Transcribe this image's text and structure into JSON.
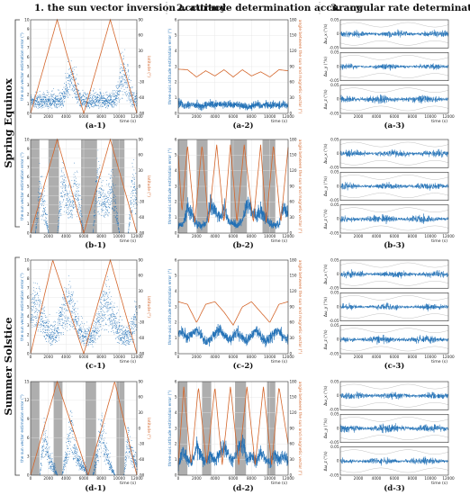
{
  "figure": {
    "column_titles": [
      "1. the sun vector inversion accuracy",
      "2. attitude determination accuracy",
      "3. angular rate determination accuracy"
    ],
    "seasons": [
      "Spring Equinox",
      "Summer Solstice"
    ],
    "row_labels": [
      [
        "(a-1)",
        "(a-2)",
        "(a-3)"
      ],
      [
        "(b-1)",
        "(b-2)",
        "(b-3)"
      ],
      [
        "(c-1)",
        "(c-2)",
        "(c-3)"
      ],
      [
        "(d-1)",
        "(d-2)",
        "(d-3)"
      ]
    ],
    "colors": {
      "blue": "#1f6fb6",
      "orange": "#d4662b",
      "shade": "#a0a0a0",
      "axis": "#333333"
    }
  },
  "chart_data": [
    {
      "id": "a-1",
      "type": "scatter",
      "xlabel": "time (s)",
      "ylabel": "the sun vector estimation error (°)",
      "y2label": "latitude (°)",
      "xticks": [
        "0",
        "2000",
        "4000",
        "6000",
        "8000",
        "10000",
        "12000"
      ],
      "yticks": [
        "0",
        "1",
        "2",
        "3",
        "4",
        "5",
        "6",
        "7",
        "8",
        "9",
        "10"
      ],
      "y2ticks": [
        "-90",
        "-60",
        "-30",
        "0",
        "30",
        "60",
        "90"
      ],
      "xlim": [
        0,
        12000
      ],
      "ylim": [
        0,
        10
      ],
      "y2lim": [
        -90,
        90
      ],
      "shaded": [],
      "error": {
        "base": [
          1.5,
          1.4,
          1.5,
          1.6,
          1.5,
          1.4,
          1.6,
          1.5,
          2.5,
          4.5,
          3.0,
          1.6,
          1.5,
          1.4,
          1.5,
          1.6,
          1.5,
          1.4,
          1.5,
          1.6,
          2.8,
          4.8,
          3.2,
          1.7,
          1.5
        ],
        "spread": [
          0.8,
          0.8,
          0.8,
          0.8,
          0.8,
          0.8,
          0.8,
          0.9,
          1.8,
          2.5,
          2.0,
          0.9,
          0.8,
          0.8,
          0.8,
          0.8,
          0.8,
          0.8,
          0.8,
          0.9,
          1.8,
          2.5,
          2.0,
          0.9,
          0.8
        ]
      },
      "reference": {
        "x": [
          0,
          3000,
          6000,
          9000,
          12000
        ],
        "y": [
          -90,
          90,
          -90,
          90,
          -90
        ]
      }
    },
    {
      "id": "a-2",
      "type": "line",
      "xlabel": "time (s)",
      "ylabel": "three-axis attitude estimation error (°)",
      "y2label": "angle between the sun and magnetic vector (°)",
      "xticks": [
        "0",
        "2000",
        "4000",
        "6000",
        "8000",
        "10000",
        "12000"
      ],
      "yticks": [
        "0",
        "1",
        "2",
        "3",
        "4",
        "5",
        "6"
      ],
      "y2ticks": [
        "0",
        "30",
        "60",
        "90",
        "120",
        "150",
        "180"
      ],
      "xlim": [
        0,
        12000
      ],
      "ylim": [
        0,
        6
      ],
      "y2lim": [
        0,
        180
      ],
      "shaded": [],
      "error": {
        "base": [
          0.9,
          0.5,
          0.6,
          0.5,
          0.6,
          0.4,
          0.5,
          0.6,
          0.5,
          0.6,
          0.5,
          0.6,
          0.5,
          0.6,
          0.5,
          0.4,
          0.5,
          0.6,
          0.5,
          0.6,
          0.5,
          0.6,
          0.5,
          0.6,
          0.5
        ],
        "spread": [
          0.5,
          0.3,
          0.3,
          0.3,
          0.3,
          0.3,
          0.3,
          0.3,
          0.3,
          0.3,
          0.3,
          0.3,
          0.3,
          0.3,
          0.3,
          0.3,
          0.3,
          0.3,
          0.3,
          0.3,
          0.3,
          0.3,
          0.3,
          0.3,
          0.3
        ]
      },
      "reference": {
        "x": [
          0,
          1000,
          2000,
          3000,
          4000,
          5000,
          6000,
          7000,
          8000,
          9000,
          10000,
          11000,
          12000
        ],
        "y": [
          85,
          84,
          70,
          82,
          72,
          84,
          70,
          84,
          72,
          80,
          70,
          84,
          82
        ]
      }
    },
    {
      "id": "b-1",
      "type": "scatter",
      "xlabel": "time (s)",
      "ylabel": "the sun vector estimation error (°)",
      "y2label": "latitude (°)",
      "xticks": [
        "0",
        "2000",
        "4000",
        "6000",
        "8000",
        "10000",
        "12000"
      ],
      "yticks": [
        "0",
        "1",
        "2",
        "3",
        "4",
        "5",
        "6",
        "7",
        "8",
        "9",
        "10"
      ],
      "y2ticks": [
        "-90",
        "-60",
        "-30",
        "0",
        "30",
        "60",
        "90"
      ],
      "xlim": [
        0,
        12000
      ],
      "ylim": [
        0,
        10
      ],
      "y2lim": [
        -90,
        90
      ],
      "shaded": [
        [
          0,
          1000
        ],
        [
          2000,
          3200
        ],
        [
          5700,
          7500
        ],
        [
          9200,
          10600
        ]
      ],
      "error": {
        "base": [
          0,
          0,
          5.0,
          3.0,
          0,
          0,
          0,
          6.0,
          4.0,
          3.5,
          5.5,
          3.0,
          0,
          0,
          0,
          6.5,
          4.0,
          3.0,
          5.0,
          3.5,
          0,
          0,
          0,
          6.0,
          4.0
        ],
        "spread": [
          0,
          0,
          2.5,
          2.0,
          0,
          0,
          0,
          2.5,
          2.0,
          2.0,
          2.5,
          2.0,
          0,
          0,
          0,
          2.5,
          2.0,
          2.0,
          2.5,
          2.0,
          0,
          0,
          0,
          2.5,
          2.0
        ]
      },
      "reference": {
        "x": [
          0,
          3000,
          6000,
          9000,
          12000
        ],
        "y": [
          -90,
          90,
          -90,
          90,
          -90
        ]
      }
    },
    {
      "id": "b-2",
      "type": "line",
      "xlabel": "time (s)",
      "ylabel": "three-axis attitude estimation error (°)",
      "y2label": "angle between the sun and magnetic vector (°)",
      "xticks": [
        "0",
        "2000",
        "4000",
        "6000",
        "8000",
        "10000",
        "12000"
      ],
      "yticks": [
        "0",
        "1",
        "2",
        "3",
        "4",
        "5",
        "6"
      ],
      "y2ticks": [
        "0",
        "30",
        "60",
        "90",
        "120",
        "150",
        "180"
      ],
      "xlim": [
        0,
        12000
      ],
      "ylim": [
        0,
        6
      ],
      "y2lim": [
        0,
        180
      ],
      "shaded": [
        [
          0,
          1000
        ],
        [
          2000,
          3200
        ],
        [
          5700,
          7500
        ],
        [
          9200,
          10600
        ]
      ],
      "error": {
        "base": [
          0.5,
          0.6,
          1.6,
          1.2,
          0.6,
          0.5,
          0.6,
          1.8,
          1.4,
          1.0,
          1.6,
          0.8,
          0.6,
          0.5,
          0.8,
          1.9,
          1.4,
          1.0,
          1.5,
          1.0,
          0.6,
          0.5,
          0.6,
          1.7,
          1.1
        ],
        "spread": [
          0.3,
          0.3,
          0.7,
          0.6,
          0.3,
          0.3,
          0.3,
          0.8,
          0.6,
          0.5,
          0.7,
          0.4,
          0.3,
          0.3,
          0.4,
          0.8,
          0.6,
          0.5,
          0.7,
          0.5,
          0.3,
          0.3,
          0.3,
          0.7,
          0.5
        ]
      },
      "reference": {
        "x": [
          0,
          400,
          1000,
          1800,
          2600,
          3300,
          4200,
          5000,
          5700,
          6400,
          7200,
          8200,
          9000,
          9600,
          10400,
          11200,
          12000
        ],
        "y": [
          150,
          40,
          170,
          20,
          170,
          20,
          170,
          20,
          170,
          20,
          170,
          20,
          170,
          20,
          170,
          20,
          165
        ]
      }
    },
    {
      "id": "c-1",
      "type": "scatter",
      "xlabel": "time (s)",
      "ylabel": "the sun vector estimation error (°)",
      "y2label": "latitude (°)",
      "xticks": [
        "0",
        "2000",
        "4000",
        "6000",
        "8000",
        "10000",
        "12000"
      ],
      "yticks": [
        "0",
        "1",
        "2",
        "3",
        "4",
        "5",
        "6",
        "7",
        "8",
        "9",
        "10"
      ],
      "y2ticks": [
        "-90",
        "-60",
        "-30",
        "0",
        "30",
        "60",
        "90"
      ],
      "xlim": [
        0,
        12000
      ],
      "ylim": [
        0,
        10
      ],
      "y2lim": [
        -90,
        90
      ],
      "shaded": [],
      "error": {
        "base": [
          6.5,
          7.0,
          6.0,
          4.0,
          2.5,
          2.0,
          3.0,
          5.0,
          7.0,
          6.5,
          4.5,
          3.0,
          2.0,
          1.8,
          2.0,
          3.5,
          6.0,
          7.0,
          6.0,
          4.0,
          2.5,
          2.0,
          2.0,
          3.0,
          5.5
        ],
        "spread": [
          1.5,
          1.5,
          1.5,
          1.5,
          1.2,
          1.2,
          1.2,
          1.5,
          1.5,
          1.5,
          1.5,
          1.2,
          1.2,
          1.2,
          1.2,
          1.5,
          1.5,
          1.5,
          1.5,
          1.5,
          1.2,
          1.2,
          1.2,
          1.5,
          1.5
        ]
      },
      "reference": {
        "x": [
          0,
          2500,
          6000,
          9000,
          12000
        ],
        "y": [
          -90,
          90,
          -90,
          90,
          -90
        ]
      }
    },
    {
      "id": "c-2",
      "type": "line",
      "xlabel": "time (s)",
      "ylabel": "three-axis attitude estimation error (°)",
      "y2label": "angle between the sun and magnetic vector (°)",
      "xticks": [
        "0",
        "2000",
        "4000",
        "6000",
        "8000",
        "10000",
        "12000"
      ],
      "yticks": [
        "0",
        "1",
        "2",
        "3",
        "4",
        "5",
        "6"
      ],
      "y2ticks": [
        "0",
        "30",
        "60",
        "90",
        "120",
        "150",
        "180"
      ],
      "xlim": [
        0,
        12000
      ],
      "ylim": [
        0,
        6
      ],
      "y2lim": [
        0,
        180
      ],
      "shaded": [],
      "error": {
        "base": [
          1.3,
          1.4,
          1.0,
          1.3,
          1.5,
          1.2,
          0.8,
          0.9,
          1.3,
          1.6,
          1.2,
          0.9,
          1.1,
          1.4,
          1.0,
          0.8,
          1.2,
          1.5,
          1.1,
          0.8,
          1.0,
          1.3,
          1.5,
          1.0,
          0.9
        ],
        "spread": [
          0.4,
          0.4,
          0.4,
          0.4,
          0.4,
          0.4,
          0.4,
          0.4,
          0.4,
          0.4,
          0.4,
          0.4,
          0.4,
          0.4,
          0.4,
          0.4,
          0.4,
          0.4,
          0.4,
          0.4,
          0.4,
          0.4,
          0.4,
          0.4,
          0.4
        ]
      },
      "reference": {
        "x": [
          0,
          1000,
          2000,
          3000,
          4000,
          5000,
          6000,
          7000,
          8000,
          9000,
          10000,
          11000,
          12000
        ],
        "y": [
          100,
          95,
          60,
          95,
          100,
          80,
          55,
          90,
          100,
          80,
          60,
          95,
          100
        ]
      }
    },
    {
      "id": "d-1",
      "type": "scatter",
      "xlabel": "time (s)",
      "ylabel": "the sun vector estimation error (°)",
      "y2label": "latitude (°)",
      "xticks": [
        "0",
        "2000",
        "4000",
        "6000",
        "8000",
        "10000",
        "12000"
      ],
      "yticks": [
        "0",
        "3",
        "6",
        "9",
        "12",
        "15"
      ],
      "y2ticks": [
        "-90",
        "-60",
        "-30",
        "0",
        "30",
        "60",
        "90"
      ],
      "xlim": [
        0,
        12000
      ],
      "ylim": [
        0,
        15
      ],
      "y2lim": [
        -90,
        90
      ],
      "shaded": [
        [
          0,
          1000
        ],
        [
          2600,
          3600
        ],
        [
          6200,
          7400
        ],
        [
          9700,
          10600
        ]
      ],
      "error": {
        "base": [
          0,
          0,
          0,
          8.0,
          3.0,
          1.5,
          0,
          0,
          3.0,
          9.0,
          4.0,
          2.0,
          1.5,
          0,
          0,
          3.5,
          9.5,
          4.0,
          1.5,
          0,
          0,
          0,
          7.0,
          3.0,
          2.0
        ],
        "spread": [
          0,
          0,
          0,
          3.0,
          2.0,
          1.2,
          0,
          0,
          2.0,
          3.0,
          2.0,
          1.2,
          1.2,
          0,
          0,
          2.0,
          3.0,
          2.0,
          1.2,
          0,
          0,
          0,
          3.0,
          2.0,
          1.2
        ]
      },
      "reference": {
        "x": [
          0,
          3000,
          6500,
          9500,
          12000
        ],
        "y": [
          -90,
          90,
          -90,
          90,
          -90
        ]
      }
    },
    {
      "id": "d-2",
      "type": "line",
      "xlabel": "time (s)",
      "ylabel": "three-axis attitude estimation error (°)",
      "y2label": "angle between the sun and magnetic vector (°)",
      "xticks": [
        "0",
        "2000",
        "4000",
        "6000",
        "8000",
        "10000",
        "12000"
      ],
      "yticks": [
        "0",
        "1",
        "2",
        "3",
        "4",
        "5",
        "6"
      ],
      "y2ticks": [
        "0",
        "30",
        "60",
        "90",
        "120",
        "150",
        "180"
      ],
      "xlim": [
        0,
        12000
      ],
      "ylim": [
        0,
        6
      ],
      "y2lim": [
        0,
        180
      ],
      "shaded": [
        [
          0,
          1000
        ],
        [
          2600,
          3600
        ],
        [
          6200,
          7400
        ],
        [
          9700,
          10600
        ]
      ],
      "error": {
        "base": [
          0.6,
          1.5,
          1.0,
          0.8,
          1.8,
          1.2,
          0.9,
          1.2,
          1.0,
          1.4,
          1.8,
          1.2,
          0.9,
          1.6,
          2.2,
          1.0,
          1.2,
          0.8,
          1.5,
          1.0,
          0.8,
          1.3,
          1.0,
          1.2,
          0.9
        ],
        "spread": [
          0.4,
          0.6,
          0.5,
          0.4,
          0.7,
          0.5,
          0.4,
          0.5,
          0.5,
          0.6,
          0.7,
          0.5,
          0.4,
          0.6,
          0.8,
          0.5,
          0.5,
          0.4,
          0.6,
          0.5,
          0.4,
          0.5,
          0.5,
          0.5,
          0.4
        ]
      },
      "reference": {
        "x": [
          0,
          600,
          1400,
          2200,
          3100,
          4000,
          4800,
          5700,
          6600,
          7500,
          8400,
          9300,
          10200,
          11000,
          12000
        ],
        "y": [
          20,
          170,
          20,
          170,
          20,
          170,
          20,
          170,
          20,
          170,
          20,
          170,
          20,
          170,
          60
        ]
      }
    },
    {
      "id": "rate-a",
      "type": "line",
      "xlabel": "time (s)",
      "channel_labels": [
        "Δω_x (°/s)",
        "Δω_y (°/s)",
        "Δω_z (°/s)"
      ],
      "xticks": [
        "0",
        "2000",
        "4000",
        "6000",
        "8000",
        "10000",
        "12000"
      ],
      "yticks": [
        "-0.05",
        "0",
        "0.05"
      ],
      "xlim": [
        0,
        12000
      ],
      "ylim": [
        -0.05,
        0.05
      ],
      "amplitude": [
        0.025,
        0.02,
        0.03
      ]
    },
    {
      "id": "rate-b",
      "type": "line",
      "xlabel": "time (s)",
      "channel_labels": [
        "Δω_x (°/s)",
        "Δω_y (°/s)",
        "Δω_z (°/s)"
      ],
      "xticks": [
        "0",
        "2000",
        "4000",
        "6000",
        "8000",
        "10000",
        "12000"
      ],
      "yticks": [
        "-0.05",
        "0",
        "0.05"
      ],
      "xlim": [
        0,
        12000
      ],
      "ylim": [
        -0.05,
        0.05
      ],
      "amplitude": [
        0.025,
        0.025,
        0.028
      ]
    },
    {
      "id": "rate-c",
      "type": "line",
      "xlabel": "time (s)",
      "channel_labels": [
        "Δω_x (°/s)",
        "Δω_y (°/s)",
        "Δω_z (°/s)"
      ],
      "xticks": [
        "0",
        "2000",
        "4000",
        "6000",
        "8000",
        "10000",
        "12000"
      ],
      "yticks": [
        "-0.05",
        "0",
        "0.05"
      ],
      "xlim": [
        0,
        12000
      ],
      "ylim": [
        -0.05,
        0.05
      ],
      "amplitude": [
        0.025,
        0.022,
        0.028
      ]
    },
    {
      "id": "rate-d",
      "type": "line",
      "xlabel": "time (s)",
      "channel_labels": [
        "Δω_x (°/s)",
        "Δω_y (°/s)",
        "Δω_z (°/s)"
      ],
      "xticks": [
        "0",
        "2000",
        "4000",
        "6000",
        "8000",
        "10000",
        "12000"
      ],
      "yticks": [
        "-0.05",
        "0",
        "0.05"
      ],
      "xlim": [
        0,
        12000
      ],
      "ylim": [
        -0.05,
        0.05
      ],
      "amplitude": [
        0.025,
        0.03,
        0.025
      ]
    }
  ]
}
